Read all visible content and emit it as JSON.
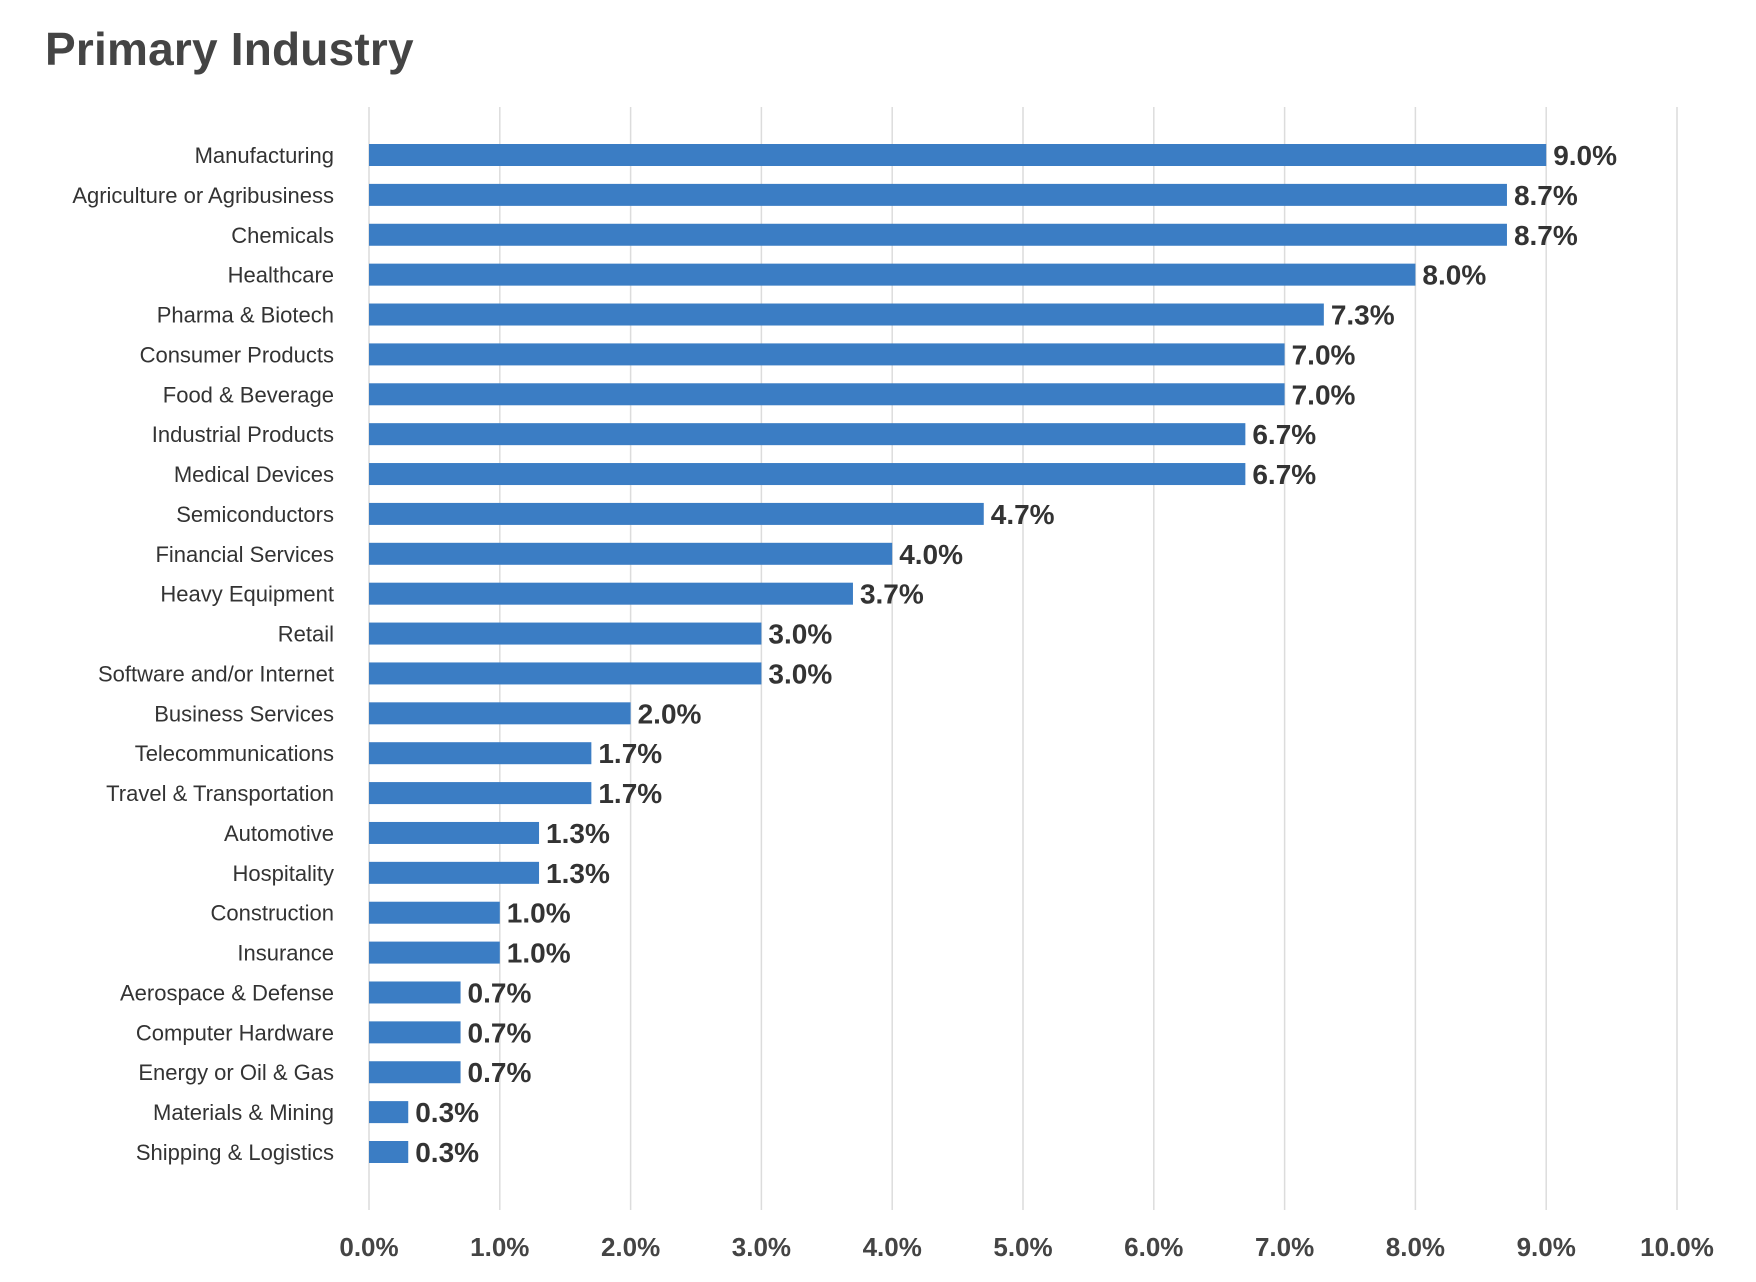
{
  "chart_data": {
    "type": "bar",
    "orientation": "horizontal",
    "title": "Primary Industry",
    "xlabel": "",
    "ylabel": "",
    "xlim": [
      0,
      10
    ],
    "grid": true,
    "legend": "none",
    "bar_color": "#3b7dc4",
    "categories": [
      "Manufacturing",
      "Agriculture or Agribusiness",
      "Chemicals",
      "Healthcare",
      "Pharma & Biotech",
      "Consumer Products",
      "Food & Beverage",
      "Industrial Products",
      "Medical Devices",
      "Semiconductors",
      "Financial Services",
      "Heavy Equipment",
      "Retail",
      "Software and/or Internet",
      "Business Services",
      "Telecommunications",
      "Travel & Transportation",
      "Automotive",
      "Hospitality",
      "Construction",
      "Insurance",
      "Aerospace & Defense",
      "Computer Hardware",
      "Energy or Oil & Gas",
      "Materials & Mining",
      "Shipping & Logistics"
    ],
    "values": [
      9.0,
      8.7,
      8.7,
      8.0,
      7.3,
      7.0,
      7.0,
      6.7,
      6.7,
      4.7,
      4.0,
      3.7,
      3.0,
      3.0,
      2.0,
      1.7,
      1.7,
      1.3,
      1.3,
      1.0,
      1.0,
      0.7,
      0.7,
      0.7,
      0.3,
      0.3
    ],
    "data_labels": [
      "9.0%",
      "8.7%",
      "8.7%",
      "8.0%",
      "7.3%",
      "7.0%",
      "7.0%",
      "6.7%",
      "6.7%",
      "4.7%",
      "4.0%",
      "3.7%",
      "3.0%",
      "3.0%",
      "2.0%",
      "1.7%",
      "1.7%",
      "1.3%",
      "1.3%",
      "1.0%",
      "1.0%",
      "0.7%",
      "0.7%",
      "0.7%",
      "0.3%",
      "0.3%"
    ],
    "x_ticks": [
      0,
      1,
      2,
      3,
      4,
      5,
      6,
      7,
      8,
      9,
      10
    ],
    "x_tick_labels": [
      "0.0%",
      "1.0%",
      "2.0%",
      "3.0%",
      "4.0%",
      "5.0%",
      "6.0%",
      "7.0%",
      "8.0%",
      "9.0%",
      "10.0%"
    ]
  }
}
